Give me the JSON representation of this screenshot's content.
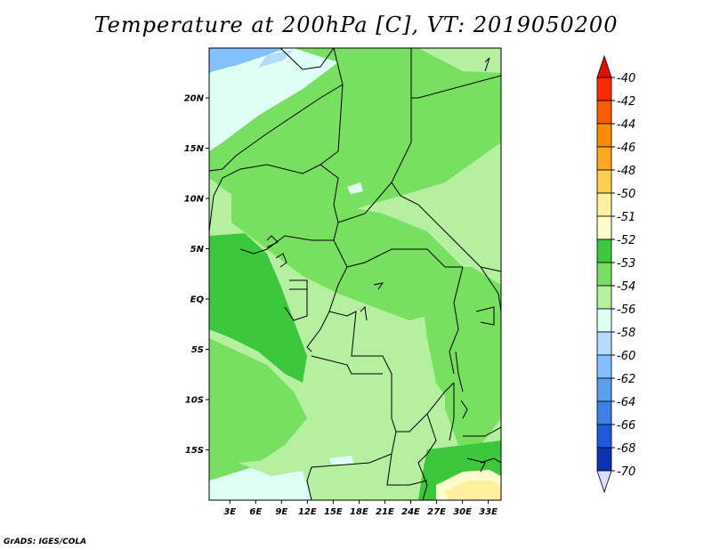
{
  "title": "Temperature at 200hPa [C], VT: 2019050200",
  "credit": "GrADS: IGES/COLA",
  "map": {
    "lat_labels": [
      "20N",
      "15N",
      "10N",
      "5N",
      "EQ",
      "5S",
      "10S",
      "15S"
    ],
    "lat_values": [
      20,
      15,
      10,
      5,
      0,
      -5,
      -10,
      -15
    ],
    "lon_labels": [
      "3E",
      "6E",
      "9E",
      "12E",
      "15E",
      "18E",
      "21E",
      "24E",
      "27E",
      "30E",
      "33E"
    ],
    "lon_values": [
      3,
      6,
      9,
      12,
      15,
      18,
      21,
      24,
      27,
      30,
      33
    ],
    "dominant_fill": "#b4f0a0",
    "warm_pocket_fill": "#fff0a0"
  },
  "colorbar": {
    "labels": [
      "-40",
      "-42",
      "-44",
      "-46",
      "-48",
      "-50",
      "-51",
      "-52",
      "-53",
      "-54",
      "-56",
      "-58",
      "-60",
      "-62",
      "-64",
      "-66",
      "-68",
      "-70"
    ],
    "colors": [
      "#ff2a00",
      "#ff5a00",
      "#ff8c00",
      "#ffaa1e",
      "#ffd050",
      "#fff0a0",
      "#fffccc",
      "#3cc83c",
      "#78e060",
      "#b4f0a0",
      "#e0fff4",
      "#b4dcff",
      "#82c0ff",
      "#5aa0f0",
      "#3c82e6",
      "#1e5adc",
      "#0a32b4",
      "#000a78"
    ],
    "top_arrow_color": "#e01000",
    "bottom_arrow_color": "#dcdcff"
  }
}
